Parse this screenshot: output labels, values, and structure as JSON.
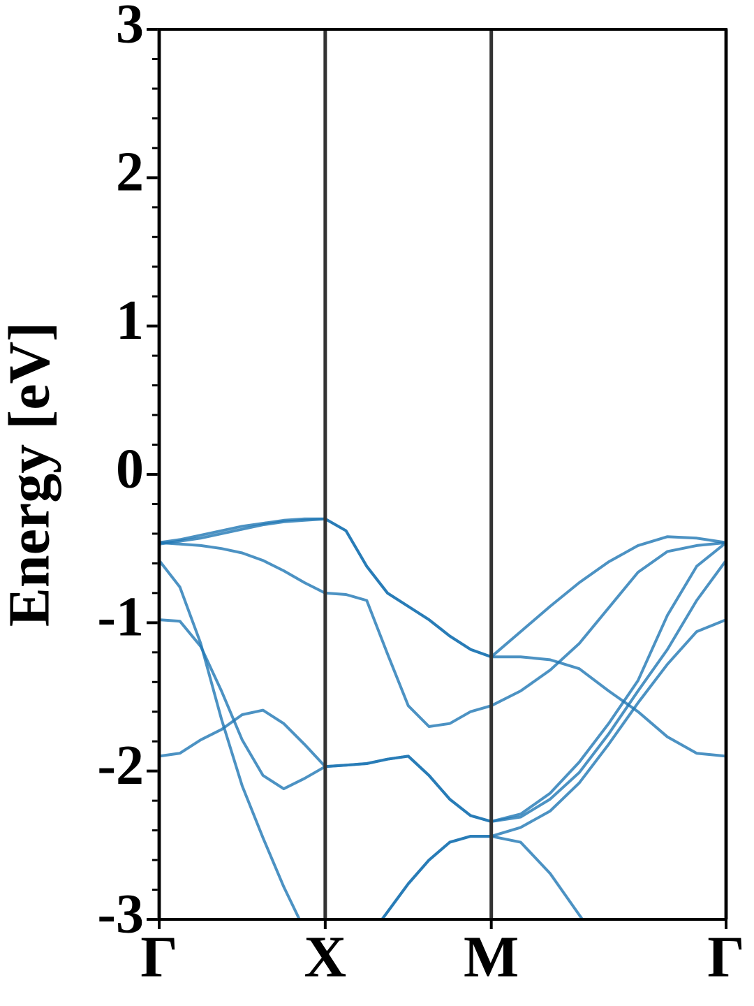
{
  "chart_data": {
    "type": "line",
    "ylabel": "Energy [eV]",
    "ylim": [
      -3,
      3
    ],
    "yticks": [
      -3,
      -2,
      -1,
      0,
      1,
      2,
      3
    ],
    "minor_yticks": [
      -2.8,
      -2.6,
      -2.4,
      -2.2,
      -1.8,
      -1.6,
      -1.4,
      -1.2,
      -0.8,
      -0.6,
      -0.4,
      -0.2,
      0.2,
      0.4,
      0.6,
      0.8,
      1.2,
      1.4,
      1.6,
      1.8,
      2.2,
      2.4,
      2.6,
      2.8
    ],
    "xlim": [
      0,
      3.414
    ],
    "xticks": [
      {
        "value": 0,
        "label": "Γ"
      },
      {
        "value": 1,
        "label": "X"
      },
      {
        "value": 2,
        "label": "M"
      },
      {
        "value": 3.414,
        "label": "Γ"
      }
    ],
    "vertical_lines": true,
    "x": [
      0,
      0.125,
      0.25,
      0.375,
      0.5,
      0.625,
      0.75,
      0.875,
      1,
      1.125,
      1.25,
      1.375,
      1.5,
      1.625,
      1.75,
      1.875,
      2,
      2.177,
      2.354,
      2.53,
      2.707,
      2.884,
      3.061,
      3.237,
      3.414
    ],
    "series": [
      {
        "color": "#1f77b4",
        "values": [
          -0.46,
          -0.44,
          -0.41,
          -0.38,
          -0.35,
          -0.33,
          -0.31,
          -0.3,
          -0.3,
          -0.38,
          -0.62,
          -0.8,
          -0.89,
          -0.98,
          -1.09,
          -1.18,
          -1.23,
          -1.06,
          -0.89,
          -0.73,
          -0.59,
          -0.48,
          -0.42,
          -0.43,
          -0.46
        ]
      },
      {
        "color": "#1f77b4",
        "values": [
          -0.46,
          -0.47,
          -0.48,
          -0.5,
          -0.53,
          -0.58,
          -0.65,
          -0.73,
          -0.8,
          -0.81,
          -0.85,
          -1.21,
          -1.56,
          -1.7,
          -1.68,
          -1.6,
          -1.56,
          -1.46,
          -1.32,
          -1.14,
          -0.9,
          -0.66,
          -0.52,
          -0.48,
          -0.46
        ]
      },
      {
        "color": "#1f77b4",
        "values": [
          -0.47,
          -0.45,
          -0.43,
          -0.4,
          -0.37,
          -0.34,
          -0.32,
          -0.31,
          -0.3,
          -0.38,
          -0.62,
          -0.8,
          -0.89,
          -0.98,
          -1.09,
          -1.18,
          -1.23,
          -1.23,
          -1.25,
          -1.31,
          -1.46,
          -1.6,
          -1.77,
          -1.88,
          -1.9
        ]
      },
      {
        "color": "#1f77b4",
        "values": [
          -0.58,
          -0.76,
          -1.14,
          -1.65,
          -2.1,
          -2.45,
          -2.78,
          -3.07,
          null,
          null,
          -3.14,
          -2.95,
          -2.76,
          -2.6,
          -2.48,
          -2.44,
          -2.44,
          -2.48,
          -2.69,
          -2.97,
          -3.25,
          null,
          null,
          null,
          null
        ]
      },
      {
        "color": "#1f77b4",
        "values": [
          -0.98,
          -0.99,
          -1.16,
          -1.46,
          -1.79,
          -2.03,
          -2.12,
          -2.05,
          -1.97,
          -1.96,
          -1.95,
          -1.92,
          -1.9,
          -2.03,
          -2.19,
          -2.3,
          -2.34,
          -2.29,
          -2.15,
          -1.94,
          -1.68,
          -1.39,
          -0.95,
          -0.62,
          -0.46
        ]
      },
      {
        "color": "#1f77b4",
        "values": [
          -1.9,
          -1.88,
          -1.79,
          -1.72,
          -1.62,
          -1.59,
          -1.68,
          -1.82,
          -1.97,
          -1.96,
          -1.95,
          -1.92,
          -1.9,
          -2.03,
          -2.19,
          -2.3,
          -2.34,
          -2.31,
          -2.19,
          -2.01,
          -1.75,
          -1.46,
          -1.18,
          -0.85,
          -0.58
        ]
      },
      {
        "color": "#1f77b4",
        "values": [
          null,
          null,
          null,
          null,
          null,
          null,
          null,
          null,
          null,
          null,
          -3.14,
          -2.95,
          -2.76,
          -2.6,
          -2.48,
          -2.44,
          -2.44,
          -2.38,
          -2.27,
          -2.08,
          -1.82,
          -1.54,
          -1.28,
          -1.06,
          -0.98
        ]
      }
    ]
  }
}
